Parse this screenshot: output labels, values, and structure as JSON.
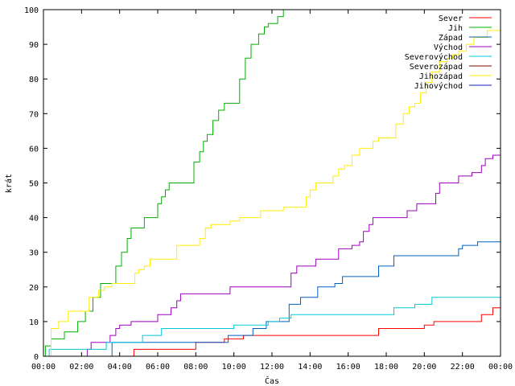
{
  "chart_data": {
    "type": "line",
    "xlabel": "Čas",
    "ylabel": "krát",
    "xlim": [
      0,
      24
    ],
    "ylim": [
      0,
      100
    ],
    "x_ticks": [
      "00:00",
      "02:00",
      "04:00",
      "06:00",
      "08:00",
      "10:00",
      "12:00",
      "14:00",
      "16:00",
      "18:00",
      "20:00",
      "22:00",
      "00:00"
    ],
    "y_ticks": [
      "0",
      "10",
      "20",
      "30",
      "40",
      "50",
      "60",
      "70",
      "80",
      "90",
      "100"
    ],
    "grid": false,
    "legend_position": "top-right",
    "series": [
      {
        "name": "Sever",
        "color": "#ff0000",
        "points": [
          [
            0,
            0
          ],
          [
            4.7,
            0
          ],
          [
            4.75,
            2
          ],
          [
            7.7,
            2
          ],
          [
            8,
            4
          ],
          [
            9.2,
            4
          ],
          [
            9.5,
            5
          ],
          [
            10.2,
            5
          ],
          [
            10.5,
            6
          ],
          [
            17.4,
            6
          ],
          [
            17.6,
            8
          ],
          [
            19.8,
            8
          ],
          [
            20,
            9
          ],
          [
            20.5,
            10
          ],
          [
            22.8,
            10
          ],
          [
            23,
            12
          ],
          [
            23.4,
            12
          ],
          [
            23.6,
            14
          ],
          [
            24,
            14
          ]
        ]
      },
      {
        "name": "Jih",
        "color": "#00b000",
        "points": [
          [
            0,
            0
          ],
          [
            0.1,
            3
          ],
          [
            0.4,
            5
          ],
          [
            0.9,
            5
          ],
          [
            1.1,
            7
          ],
          [
            1.5,
            7
          ],
          [
            1.8,
            10
          ],
          [
            2.2,
            13
          ],
          [
            2.6,
            17
          ],
          [
            3.0,
            21
          ],
          [
            3.5,
            21
          ],
          [
            3.8,
            26
          ],
          [
            4.1,
            30
          ],
          [
            4.4,
            34
          ],
          [
            4.6,
            37
          ],
          [
            5.0,
            37
          ],
          [
            5.3,
            40
          ],
          [
            5.7,
            40
          ],
          [
            6.0,
            44
          ],
          [
            6.2,
            46
          ],
          [
            6.4,
            48
          ],
          [
            6.6,
            50
          ],
          [
            7.5,
            50
          ],
          [
            7.9,
            56
          ],
          [
            8.2,
            59
          ],
          [
            8.4,
            62
          ],
          [
            8.6,
            64
          ],
          [
            8.9,
            68
          ],
          [
            9.2,
            71
          ],
          [
            9.5,
            73
          ],
          [
            10.0,
            73
          ],
          [
            10.3,
            80
          ],
          [
            10.6,
            86
          ],
          [
            10.9,
            90
          ],
          [
            11.3,
            93
          ],
          [
            11.6,
            95
          ],
          [
            11.8,
            96
          ],
          [
            12.1,
            96
          ],
          [
            12.3,
            98
          ],
          [
            12.6,
            100
          ]
        ]
      },
      {
        "name": "Západ",
        "color": "#0060c0",
        "points": [
          [
            0,
            0
          ],
          [
            3.5,
            0
          ],
          [
            3.6,
            4
          ],
          [
            9.5,
            4
          ],
          [
            9.7,
            6
          ],
          [
            10.8,
            6
          ],
          [
            11,
            8
          ],
          [
            11.5,
            8
          ],
          [
            11.7,
            10
          ],
          [
            12.7,
            10
          ],
          [
            12.9,
            15
          ],
          [
            13.5,
            17
          ],
          [
            14.2,
            17
          ],
          [
            14.4,
            20
          ],
          [
            15.1,
            20
          ],
          [
            15.3,
            21
          ],
          [
            15.7,
            23
          ],
          [
            17.4,
            23
          ],
          [
            17.6,
            26
          ],
          [
            18.2,
            26
          ],
          [
            18.4,
            29
          ],
          [
            21.6,
            29
          ],
          [
            21.8,
            31
          ],
          [
            22,
            32
          ],
          [
            22.8,
            33
          ],
          [
            24,
            33
          ]
        ]
      },
      {
        "name": "Východ",
        "color": "#a000c0",
        "points": [
          [
            0,
            0
          ],
          [
            2.2,
            0
          ],
          [
            2.3,
            2
          ],
          [
            2.5,
            4
          ],
          [
            3.4,
            4
          ],
          [
            3.5,
            6
          ],
          [
            3.8,
            8
          ],
          [
            4,
            9
          ],
          [
            4.4,
            9
          ],
          [
            4.6,
            10
          ],
          [
            5.6,
            10
          ],
          [
            6,
            12
          ],
          [
            6.7,
            14
          ],
          [
            7,
            16
          ],
          [
            7.2,
            18
          ],
          [
            9.6,
            18
          ],
          [
            9.8,
            20
          ],
          [
            12.8,
            20
          ],
          [
            13,
            24
          ],
          [
            13.3,
            26
          ],
          [
            14.1,
            26
          ],
          [
            14.3,
            28
          ],
          [
            15,
            28
          ],
          [
            15.5,
            31
          ],
          [
            16.2,
            32
          ],
          [
            16.6,
            33
          ],
          [
            16.8,
            36
          ],
          [
            17.1,
            38
          ],
          [
            17.3,
            40
          ],
          [
            18.9,
            40
          ],
          [
            19.1,
            42
          ],
          [
            19.6,
            44
          ],
          [
            20.5,
            44
          ],
          [
            20.6,
            47
          ],
          [
            20.8,
            50
          ],
          [
            21.6,
            50
          ],
          [
            21.8,
            52
          ],
          [
            22.3,
            52
          ],
          [
            22.5,
            53
          ],
          [
            23,
            55
          ],
          [
            23.2,
            57
          ],
          [
            23.6,
            58
          ],
          [
            24,
            59
          ]
        ]
      },
      {
        "name": "Severovýchod",
        "color": "#00c8d8",
        "points": [
          [
            0,
            0
          ],
          [
            0.2,
            0
          ],
          [
            0.3,
            2
          ],
          [
            3.2,
            2
          ],
          [
            3.3,
            4
          ],
          [
            5,
            4
          ],
          [
            5.2,
            6
          ],
          [
            6,
            6
          ],
          [
            6.2,
            8
          ],
          [
            9.8,
            8
          ],
          [
            10,
            9
          ],
          [
            11.6,
            9
          ],
          [
            11.8,
            10
          ],
          [
            12.2,
            10
          ],
          [
            12.4,
            11
          ],
          [
            13,
            12
          ],
          [
            18.2,
            12
          ],
          [
            18.4,
            14
          ],
          [
            19.2,
            14
          ],
          [
            19.5,
            15
          ],
          [
            20.2,
            15
          ],
          [
            20.4,
            17
          ],
          [
            24,
            17
          ]
        ]
      },
      {
        "name": "Severozápad",
        "color": "#8b0000",
        "points": [
          [
            0,
            0
          ],
          [
            24,
            0
          ]
        ]
      },
      {
        "name": "Jihozápad",
        "color": "#ffee00",
        "points": [
          [
            0,
            0
          ],
          [
            0.4,
            8
          ],
          [
            0.8,
            10
          ],
          [
            1.3,
            13
          ],
          [
            2,
            13
          ],
          [
            2.4,
            17
          ],
          [
            2.9,
            19
          ],
          [
            3.2,
            20
          ],
          [
            3.6,
            21
          ],
          [
            4.5,
            21
          ],
          [
            4.8,
            24
          ],
          [
            5,
            25
          ],
          [
            5.3,
            26
          ],
          [
            5.6,
            28
          ],
          [
            6.6,
            28
          ],
          [
            7,
            32
          ],
          [
            8,
            32
          ],
          [
            8.2,
            34
          ],
          [
            8.5,
            37
          ],
          [
            8.8,
            38
          ],
          [
            9.5,
            38
          ],
          [
            9.8,
            39
          ],
          [
            10.3,
            40
          ],
          [
            11,
            40
          ],
          [
            11.4,
            42
          ],
          [
            12.3,
            42
          ],
          [
            12.6,
            43
          ],
          [
            13.6,
            43
          ],
          [
            13.8,
            46
          ],
          [
            14,
            48
          ],
          [
            14.3,
            50
          ],
          [
            15,
            50
          ],
          [
            15.2,
            52
          ],
          [
            15.5,
            54
          ],
          [
            15.8,
            55
          ],
          [
            16.2,
            58
          ],
          [
            16.6,
            60
          ],
          [
            17,
            60
          ],
          [
            17.3,
            62
          ],
          [
            17.6,
            63
          ],
          [
            18.2,
            63
          ],
          [
            18.5,
            67
          ],
          [
            18.9,
            70
          ],
          [
            19.2,
            72
          ],
          [
            19.5,
            73
          ],
          [
            19.8,
            76
          ],
          [
            20.1,
            79
          ],
          [
            20.4,
            82
          ],
          [
            20.8,
            85
          ],
          [
            21.2,
            86
          ],
          [
            21.5,
            87
          ],
          [
            21.8,
            88
          ],
          [
            22.2,
            90
          ],
          [
            22.6,
            92
          ],
          [
            23,
            92
          ],
          [
            23.3,
            94
          ],
          [
            24,
            94
          ]
        ]
      },
      {
        "name": "Jihovýchod",
        "color": "#1020c0",
        "points": [
          [
            0,
            0
          ],
          [
            24,
            0
          ]
        ]
      }
    ]
  }
}
